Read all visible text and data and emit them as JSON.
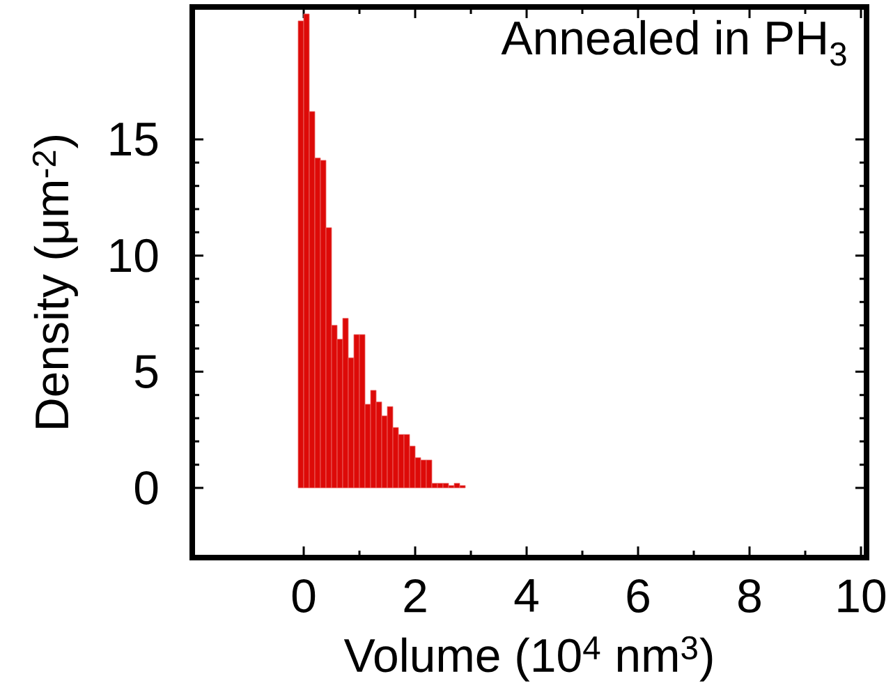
{
  "chart_data": {
    "type": "histogram",
    "xlabel": "Volume (10$^{4}$ nm$^{3}$)",
    "ylabel": "Density (μm$^{-2}$)",
    "annotations": [
      "Annealed in PH$_{3}$"
    ],
    "bins": [
      -0.1,
      0.0,
      0.1,
      0.2,
      0.3,
      0.4,
      0.5,
      0.6,
      0.7,
      0.8,
      0.9,
      1.0,
      1.1,
      1.2,
      1.3,
      1.4,
      1.5,
      1.6,
      1.7,
      1.8,
      1.9,
      2.0,
      2.1,
      2.2,
      2.3,
      2.4,
      2.5,
      2.6,
      2.7,
      2.8,
      2.9
    ],
    "values": [
      20.1,
      20.4,
      16.2,
      14.2,
      14.1,
      11.2,
      7.0,
      6.4,
      7.3,
      5.6,
      6.6,
      6.6,
      3.6,
      4.2,
      3.7,
      3.1,
      3.5,
      2.6,
      2.3,
      2.3,
      1.8,
      1.3,
      1.2,
      1.2,
      0.2,
      0.2,
      0.2,
      0.1,
      0.2,
      0.1
    ],
    "color": "#dd0a08",
    "xlim": [
      -2,
      10.1
    ],
    "ylim": [
      -3,
      20.7
    ],
    "xticks": [
      0,
      2,
      4,
      6,
      8,
      10
    ],
    "yticks": [
      0,
      5,
      10,
      15
    ]
  }
}
